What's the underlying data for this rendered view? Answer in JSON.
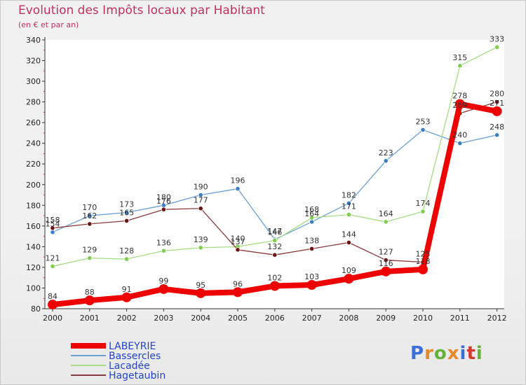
{
  "title": "Evolution des Impôts locaux par Habitant",
  "subtitle": "(en € et par an)",
  "brand": {
    "text": "Proxiti",
    "letter_colors": [
      "#3b6fd8",
      "#e5892a",
      "#66b13a",
      "#e5892a",
      "#3b6fd8",
      "#d23a2c",
      "#66b13a"
    ]
  },
  "chart_data": {
    "type": "line",
    "title": "Evolution des Impôts locaux par Habitant",
    "subtitle": "(en € et par an)",
    "xlabel": "",
    "ylabel": "",
    "x": [
      "2000",
      "2001",
      "2002",
      "2003",
      "2004",
      "2005",
      "2006",
      "2007",
      "2008",
      "2009",
      "2010",
      "2011",
      "2012"
    ],
    "ylim": [
      80,
      340
    ],
    "yticks": [
      80,
      100,
      120,
      140,
      160,
      180,
      200,
      220,
      240,
      260,
      280,
      300,
      320,
      340
    ],
    "grid": false,
    "legend_position": "bottom-left",
    "series": [
      {
        "name": "Bassercles",
        "color": "#6b9fd4",
        "marker_color": "#3a7fc4",
        "values": [
          154,
          170,
          173,
          180,
          190,
          196,
          147,
          164,
          182,
          223,
          253,
          240,
          248
        ],
        "labels": [
          "154",
          "170",
          "173",
          "180",
          "190",
          "196",
          "147",
          "164",
          "182",
          "223",
          "253",
          "240",
          "248"
        ]
      },
      {
        "name": "Lacadée",
        "color": "#a4dd84",
        "marker_color": "#7fcc4e",
        "values": [
          121,
          129,
          128,
          136,
          139,
          140,
          146,
          168,
          171,
          164,
          174,
          315,
          333
        ],
        "labels": [
          "121",
          "129",
          "128",
          "136",
          "139",
          "140",
          "146",
          "168",
          "171",
          "164",
          "174",
          "315",
          "333"
        ]
      },
      {
        "name": "Hagetaubin",
        "color": "#8b3a3a",
        "marker_color": "#6b1515",
        "values": [
          158,
          162,
          165,
          176,
          177,
          137,
          132,
          138,
          144,
          127,
          125,
          269,
          280
        ],
        "labels": [
          "158",
          "162",
          "165",
          "176",
          "177",
          "137",
          "132",
          "138",
          "144",
          "127",
          "125",
          "269",
          "280"
        ]
      },
      {
        "name": "LABEYRIE",
        "color": "#ee0000",
        "marker_color": "#ee0000",
        "values": [
          84,
          88,
          91,
          99,
          95,
          96,
          102,
          103,
          109,
          116,
          118,
          278,
          271
        ],
        "labels": [
          "84",
          "88",
          "91",
          "99",
          "95",
          "96",
          "102",
          "103",
          "109",
          "116",
          "118",
          "278",
          "271"
        ]
      }
    ],
    "legend_order": [
      "LABEYRIE",
      "Bassercles",
      "Lacadée",
      "Hagetaubin"
    ]
  }
}
